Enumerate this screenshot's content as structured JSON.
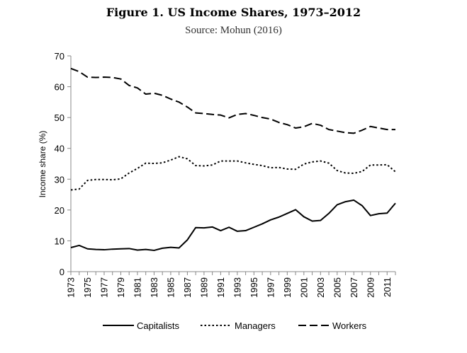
{
  "chart_data": {
    "type": "line",
    "title": "Figure 1. US Income Shares, 1973–2012",
    "subtitle": "Source: Mohun (2016)",
    "xlabel": "",
    "ylabel": "Income share (%)",
    "ylim": [
      0,
      70
    ],
    "yticks": [
      0,
      10,
      20,
      30,
      40,
      50,
      60,
      70
    ],
    "x": [
      1973,
      1974,
      1975,
      1976,
      1977,
      1978,
      1979,
      1980,
      1981,
      1982,
      1983,
      1984,
      1985,
      1986,
      1987,
      1988,
      1989,
      1990,
      1991,
      1992,
      1993,
      1994,
      1995,
      1996,
      1997,
      1998,
      1999,
      2000,
      2001,
      2002,
      2003,
      2004,
      2005,
      2006,
      2007,
      2008,
      2009,
      2010,
      2011,
      2012
    ],
    "xticks": [
      "1973",
      "1975",
      "1977",
      "1979",
      "1981",
      "1983",
      "1985",
      "1987",
      "1989",
      "1991",
      "1993",
      "1995",
      "1997",
      "1999",
      "2001",
      "2003",
      "2005",
      "2007",
      "2009",
      "2011"
    ],
    "grid": false,
    "legend_position": "bottom",
    "series": [
      {
        "name": "Capitalists",
        "style": "solid",
        "values": [
          7.8,
          8.5,
          7.4,
          7.2,
          7.1,
          7.3,
          7.4,
          7.5,
          7.0,
          7.2,
          6.9,
          7.6,
          7.9,
          7.7,
          10.3,
          14.3,
          14.2,
          14.5,
          13.3,
          14.4,
          13.1,
          13.3,
          14.4,
          15.5,
          16.8,
          17.7,
          18.9,
          20.1,
          17.8,
          16.4,
          16.6,
          18.9,
          21.7,
          22.7,
          23.2,
          21.4,
          18.2,
          18.8,
          19.0,
          22.2
        ]
      },
      {
        "name": "Managers",
        "style": "dotted",
        "values": [
          26.5,
          26.8,
          29.6,
          29.9,
          29.9,
          29.8,
          30.1,
          32.0,
          33.5,
          35.2,
          35.1,
          35.3,
          36.2,
          37.3,
          36.6,
          34.4,
          34.3,
          34.6,
          35.9,
          35.9,
          35.9,
          35.3,
          34.8,
          34.4,
          33.7,
          33.8,
          33.3,
          33.2,
          34.9,
          35.6,
          35.9,
          35.2,
          32.8,
          32.0,
          31.9,
          32.5,
          34.6,
          34.6,
          34.7,
          32.4
        ]
      },
      {
        "name": "Workers",
        "style": "dashed",
        "values": [
          65.9,
          64.9,
          63.1,
          63.0,
          63.1,
          63.0,
          62.5,
          60.4,
          59.6,
          57.6,
          57.9,
          57.2,
          56.0,
          55.0,
          53.4,
          51.5,
          51.3,
          51.0,
          50.8,
          49.9,
          51.0,
          51.3,
          50.7,
          50.0,
          49.5,
          48.4,
          47.7,
          46.6,
          47.0,
          48.1,
          47.5,
          46.1,
          45.6,
          45.1,
          44.9,
          45.9,
          47.1,
          46.6,
          46.1,
          46.1
        ]
      }
    ]
  }
}
